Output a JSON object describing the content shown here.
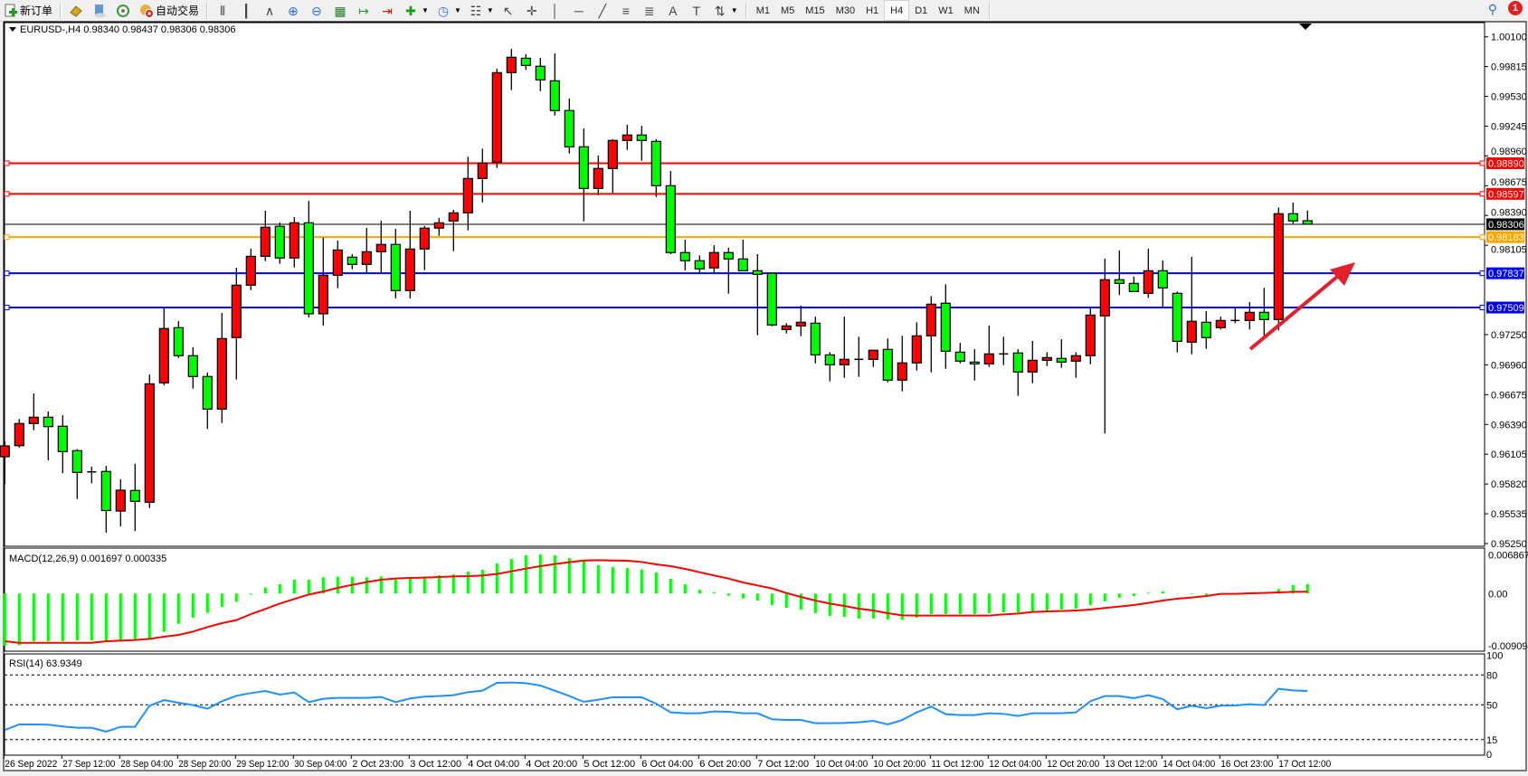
{
  "toolbar": {
    "new_order_label": "新订单",
    "auto_trading_label": "自动交易",
    "icons": [
      "new-order-icon",
      "gold-bars-icon",
      "market-watch-icon",
      "signals-icon",
      "auto-trading-icon",
      "bar-chart-icon",
      "candlestick-icon",
      "line-chart-icon",
      "zoom-in-icon",
      "zoom-out-icon",
      "tile-windows-icon",
      "chart-shift-icon",
      "auto-scroll-icon",
      "indicators-icon",
      "periods-icon",
      "templates-icon",
      "cursor-icon",
      "crosshair-icon",
      "vertical-line-icon",
      "horizontal-line-icon",
      "trendline-icon",
      "fibonacci-icon",
      "fibo-fan-icon",
      "text-icon",
      "text-label-icon",
      "arrows-icon"
    ],
    "timeframes": [
      "M1",
      "M5",
      "M15",
      "M30",
      "H1",
      "H4",
      "D1",
      "W1",
      "MN"
    ],
    "selected_timeframe": "H4",
    "notification_count": "1"
  },
  "chart": {
    "header": "EURUSD-,H4  0.98340 0.98437 0.98306 0.98306",
    "bull_color": "#ff0000",
    "bear_color": "#00ff00",
    "current_price": "0.98306",
    "levels": [
      {
        "price": "0.98890",
        "color": "#ff0000"
      },
      {
        "price": "0.98597",
        "color": "#ff0000"
      },
      {
        "price": "0.98183",
        "color": "#ffa500"
      },
      {
        "price": "0.97837",
        "color": "#0000ff"
      },
      {
        "price": "0.97509",
        "color": "#0000ff"
      }
    ],
    "macd_label": "MACD(12,26,9) 0.001697 0.000335",
    "rsi_label": "RSI(14) 63.9349"
  },
  "chart_data": [
    {
      "type": "candlestick",
      "symbol": "EURUSD-",
      "timeframe": "H4",
      "ylim": [
        0.9525,
        1.001
      ],
      "yticks": [
        "1.00100",
        "0.99815",
        "0.99530",
        "0.99245",
        "0.98960",
        "0.98675",
        "0.98390",
        "0.98105",
        "0.97250",
        "0.96960",
        "0.96675",
        "0.96390",
        "0.96105",
        "0.95820",
        "0.95535",
        "0.95250"
      ],
      "xtick_labels": [
        "26 Sep 2022",
        "27 Sep 12:00",
        "28 Sep 04:00",
        "28 Sep 20:00",
        "29 Sep 12:00",
        "30 Sep 04:00",
        "2 Oct 23:00",
        "3 Oct 12:00",
        "4 Oct 04:00",
        "4 Oct 20:00",
        "5 Oct 12:00",
        "6 Oct 04:00",
        "6 Oct 20:00",
        "7 Oct 12:00",
        "10 Oct 04:00",
        "10 Oct 20:00",
        "11 Oct 12:00",
        "12 Oct 04:00",
        "12 Oct 20:00",
        "13 Oct 12:00",
        "14 Oct 04:00",
        "16 Oct 23:00",
        "17 Oct 12:00"
      ],
      "ohlc_fields": [
        "open",
        "high",
        "low",
        "close"
      ],
      "ohlc": [
        [
          0.96081,
          0.96228,
          0.95821,
          0.96185
        ],
        [
          0.96187,
          0.96442,
          0.96168,
          0.96399
        ],
        [
          0.96399,
          0.96687,
          0.96334,
          0.96459
        ],
        [
          0.96459,
          0.96514,
          0.96046,
          0.96369
        ],
        [
          0.96373,
          0.96479,
          0.95923,
          0.9613
        ],
        [
          0.96139,
          0.96153,
          0.95677,
          0.95931
        ],
        [
          0.95936,
          0.95986,
          0.95827,
          0.95936
        ],
        [
          0.9594,
          0.95994,
          0.95354,
          0.95566
        ],
        [
          0.95561,
          0.95865,
          0.95414,
          0.95761
        ],
        [
          0.95758,
          0.96014,
          0.9537,
          0.95654
        ],
        [
          0.95646,
          0.96868,
          0.9559,
          0.96779
        ],
        [
          0.96788,
          0.97503,
          0.96765,
          0.97308
        ],
        [
          0.97316,
          0.9738,
          0.97027,
          0.97048
        ],
        [
          0.97048,
          0.97128,
          0.96733,
          0.96849
        ],
        [
          0.96849,
          0.96888,
          0.96346,
          0.96537
        ],
        [
          0.96537,
          0.97457,
          0.96404,
          0.97212
        ],
        [
          0.97221,
          0.9789,
          0.96819,
          0.97723
        ],
        [
          0.97723,
          0.98072,
          0.97676,
          0.97999
        ],
        [
          0.97999,
          0.98435,
          0.97953,
          0.98277
        ],
        [
          0.98286,
          0.98323,
          0.97927,
          0.97983
        ],
        [
          0.97983,
          0.98375,
          0.97893,
          0.9832
        ],
        [
          0.9832,
          0.9853,
          0.97414,
          0.97449
        ],
        [
          0.97449,
          0.98178,
          0.97336,
          0.97818
        ],
        [
          0.97818,
          0.9815,
          0.97694,
          0.9806
        ],
        [
          0.97991,
          0.9802,
          0.97875,
          0.97922
        ],
        [
          0.97922,
          0.98271,
          0.97841,
          0.98043
        ],
        [
          0.98043,
          0.9834,
          0.97841,
          0.98113
        ],
        [
          0.98113,
          0.98262,
          0.97596,
          0.97671
        ],
        [
          0.97671,
          0.98435,
          0.97596,
          0.98069
        ],
        [
          0.98069,
          0.9829,
          0.97867,
          0.98269
        ],
        [
          0.98269,
          0.98366,
          0.98196,
          0.9832
        ],
        [
          0.98337,
          0.98444,
          0.98048,
          0.98415
        ],
        [
          0.98415,
          0.98952,
          0.98248,
          0.98744
        ],
        [
          0.98744,
          0.9903,
          0.98516,
          0.98892
        ],
        [
          0.989,
          0.99795,
          0.98845,
          0.99757
        ],
        [
          0.99757,
          0.99985,
          0.99589,
          0.99904
        ],
        [
          0.99895,
          0.99933,
          0.99783,
          0.99826
        ],
        [
          0.99818,
          0.99898,
          0.9958,
          0.99688
        ],
        [
          0.99679,
          0.99941,
          0.99347,
          0.99394
        ],
        [
          0.99394,
          0.99509,
          0.98983,
          0.99047
        ],
        [
          0.99047,
          0.99223,
          0.98334,
          0.98649
        ],
        [
          0.98649,
          0.98963,
          0.98585,
          0.9884
        ],
        [
          0.9884,
          0.9912,
          0.98606,
          0.99108
        ],
        [
          0.99108,
          0.99258,
          0.99018,
          0.9916
        ],
        [
          0.9916,
          0.99249,
          0.98914,
          0.99108
        ],
        [
          0.99099,
          0.99119,
          0.98568,
          0.98675
        ],
        [
          0.98675,
          0.98816,
          0.9802,
          0.98035
        ],
        [
          0.98035,
          0.98158,
          0.97864,
          0.97957
        ],
        [
          0.97957,
          0.98009,
          0.97841,
          0.97879
        ],
        [
          0.97888,
          0.98106,
          0.97841,
          0.98035
        ],
        [
          0.98035,
          0.98081,
          0.97642,
          0.97974
        ],
        [
          0.97974,
          0.98158,
          0.97861,
          0.97861
        ],
        [
          0.97861,
          0.9802,
          0.97244,
          0.97827
        ],
        [
          0.97836,
          0.97836,
          0.9733,
          0.97342
        ],
        [
          0.97298,
          0.97359,
          0.97261,
          0.97333
        ],
        [
          0.97333,
          0.97527,
          0.97235,
          0.97368
        ],
        [
          0.97359,
          0.97422,
          0.96975,
          0.97056
        ],
        [
          0.97056,
          0.97082,
          0.96802,
          0.96961
        ],
        [
          0.96961,
          0.97422,
          0.96837,
          0.97013
        ],
        [
          0.97013,
          0.9723,
          0.96845,
          0.97013
        ],
        [
          0.97013,
          0.971,
          0.9694,
          0.971
        ],
        [
          0.97108,
          0.97212,
          0.96793,
          0.96814
        ],
        [
          0.96814,
          0.97238,
          0.96707,
          0.96979
        ],
        [
          0.96979,
          0.97368,
          0.96906,
          0.97238
        ],
        [
          0.97238,
          0.97619,
          0.96889,
          0.97541
        ],
        [
          0.9755,
          0.97731,
          0.96923,
          0.97091
        ],
        [
          0.97082,
          0.97171,
          0.96975,
          0.96996
        ],
        [
          0.96987,
          0.97111,
          0.96811,
          0.9697
        ],
        [
          0.9697,
          0.97336,
          0.9694,
          0.97065
        ],
        [
          0.97065,
          0.9723,
          0.96958,
          0.97065
        ],
        [
          0.97074,
          0.97111,
          0.96664,
          0.96892
        ],
        [
          0.96892,
          0.97189,
          0.96785,
          0.97004
        ],
        [
          0.97004,
          0.97082,
          0.96949,
          0.9703
        ],
        [
          0.97022,
          0.97206,
          0.96932,
          0.96987
        ],
        [
          0.96996,
          0.97082,
          0.96837,
          0.97048
        ],
        [
          0.97048,
          0.97503,
          0.96966,
          0.97437
        ],
        [
          0.97429,
          0.97977,
          0.96304,
          0.97775
        ],
        [
          0.97775,
          0.98055,
          0.97628,
          0.9774
        ],
        [
          0.9774,
          0.97806,
          0.97662,
          0.97662
        ],
        [
          0.97645,
          0.98072,
          0.97602,
          0.97861
        ],
        [
          0.97861,
          0.97959,
          0.97515,
          0.97697
        ],
        [
          0.97645,
          0.97662,
          0.97079,
          0.97186
        ],
        [
          0.97178,
          0.97994,
          0.97062,
          0.97377
        ],
        [
          0.97368,
          0.97475,
          0.97114,
          0.97221
        ],
        [
          0.97316,
          0.97422,
          0.97299,
          0.97385
        ],
        [
          0.97385,
          0.97503,
          0.97359,
          0.97385
        ],
        [
          0.97385,
          0.97561,
          0.97299,
          0.97463
        ],
        [
          0.97463,
          0.97697,
          0.97204,
          0.97394
        ],
        [
          0.97394,
          0.98467,
          0.9729,
          0.98407
        ],
        [
          0.98407,
          0.98513,
          0.98312,
          0.98338
        ],
        [
          0.9834,
          0.98437,
          0.98306,
          0.98306
        ]
      ]
    },
    {
      "type": "bar",
      "indicator": "MACD(12,26,9)",
      "ylim": [
        -0.009094,
        0.006867
      ],
      "yticks": [
        "0.006867",
        "0.00",
        "-0.009094"
      ],
      "histogram_color": "#00ff00",
      "signal_color": "#ff0000",
      "histogram": [
        -0.0093,
        -0.00919,
        -0.0085,
        -0.0085,
        -0.0085,
        -0.00833,
        -0.00833,
        -0.00833,
        -0.00822,
        -0.00822,
        -0.00796,
        -0.00683,
        -0.00538,
        -0.0043,
        -0.00345,
        -0.00237,
        -0.00145,
        -0.00016,
        0.00107,
        0.00166,
        0.00247,
        0.00247,
        0.0029,
        0.00301,
        0.00301,
        0.0029,
        0.00306,
        0.00252,
        0.0029,
        0.00306,
        0.00327,
        0.00344,
        0.00392,
        0.00424,
        0.00537,
        0.00617,
        0.00682,
        0.00698,
        0.00682,
        0.00633,
        0.00585,
        0.00504,
        0.00472,
        0.00456,
        0.00429,
        0.00376,
        0.00263,
        0.00166,
        0.00069,
        0.00021,
        -0.00039,
        -0.00087,
        -0.00124,
        -0.00205,
        -0.00253,
        -0.00285,
        -0.0035,
        -0.00398,
        -0.00414,
        -0.00447,
        -0.00447,
        -0.00463,
        -0.00463,
        -0.0043,
        -0.00366,
        -0.00366,
        -0.00366,
        -0.00366,
        -0.0035,
        -0.00334,
        -0.00334,
        -0.00318,
        -0.00301,
        -0.00285,
        -0.00269,
        -0.00205,
        -0.0014,
        -0.00076,
        -0.00043,
        0.00016,
        0.00037,
        5e-05,
        -0.00011,
        -0.00027,
        -0.00011,
        5e-05,
        5e-05,
        5e-05,
        0.00081,
        0.0015,
        0.001697
      ],
      "signal": [
        -0.0085,
        -0.00877,
        -0.00877,
        -0.00877,
        -0.00877,
        -0.00877,
        -0.00877,
        -0.0085,
        -0.00839,
        -0.00828,
        -0.00807,
        -0.00769,
        -0.00737,
        -0.00677,
        -0.00597,
        -0.00527,
        -0.00473,
        -0.00366,
        -0.00274,
        -0.00178,
        -0.00097,
        -0.00017,
        0.00037,
        0.00102,
        0.00155,
        0.00204,
        0.00247,
        0.00268,
        0.00279,
        0.00284,
        0.00295,
        0.00306,
        0.00311,
        0.00322,
        0.00349,
        0.00397,
        0.00445,
        0.00488,
        0.00526,
        0.00559,
        0.0059,
        0.00596,
        0.0059,
        0.00585,
        0.00564,
        0.00521,
        0.00488,
        0.0044,
        0.00381,
        0.00322,
        0.00268,
        0.00198,
        0.00145,
        0.00091,
        0.0001,
        -0.0006,
        -0.00124,
        -0.00178,
        -0.00221,
        -0.00269,
        -0.00301,
        -0.0035,
        -0.00388,
        -0.00393,
        -0.00393,
        -0.00393,
        -0.00393,
        -0.00393,
        -0.00393,
        -0.00371,
        -0.00355,
        -0.00328,
        -0.00317,
        -0.00312,
        -0.00301,
        -0.00285,
        -0.00258,
        -0.00231,
        -0.00204,
        -0.00167,
        -0.00124,
        -0.00091,
        -0.0007,
        -0.00043,
        -6e-05,
        -6e-05,
        5e-05,
        0.0001,
        0.00021,
        0.00032,
        0.000335
      ]
    },
    {
      "type": "line",
      "indicator": "RSI(14)",
      "ylim": [
        0,
        100
      ],
      "yticks": [
        "100",
        "80",
        "50",
        "15",
        "0"
      ],
      "levels": [
        80,
        50,
        15
      ],
      "line_color": "#1e90ff",
      "values": [
        24.8,
        30.3,
        30.3,
        30.0,
        28.2,
        27.0,
        27.0,
        23.0,
        27.9,
        27.9,
        49.1,
        54.8,
        52.1,
        49.7,
        46.1,
        53.6,
        59.1,
        61.8,
        63.9,
        60.3,
        62.4,
        52.7,
        56.1,
        57.0,
        57.0,
        57.0,
        57.9,
        52.7,
        56.4,
        58.2,
        58.8,
        59.7,
        62.7,
        64.2,
        72.1,
        72.4,
        71.8,
        69.4,
        64.2,
        58.8,
        53.0,
        55.2,
        57.6,
        57.6,
        57.6,
        51.2,
        42.4,
        41.5,
        41.5,
        43.3,
        43.0,
        41.5,
        41.5,
        35.5,
        34.8,
        34.8,
        31.5,
        31.5,
        31.8,
        32.4,
        33.9,
        30.3,
        34.8,
        42.4,
        48.2,
        40.6,
        39.7,
        39.7,
        41.5,
        40.9,
        38.8,
        41.5,
        41.5,
        41.5,
        42.4,
        53.6,
        58.8,
        58.8,
        56.7,
        59.7,
        55.7,
        45.5,
        49.1,
        46.7,
        49.1,
        49.4,
        50.6,
        49.7,
        66.1,
        64.5,
        63.9349
      ]
    }
  ]
}
